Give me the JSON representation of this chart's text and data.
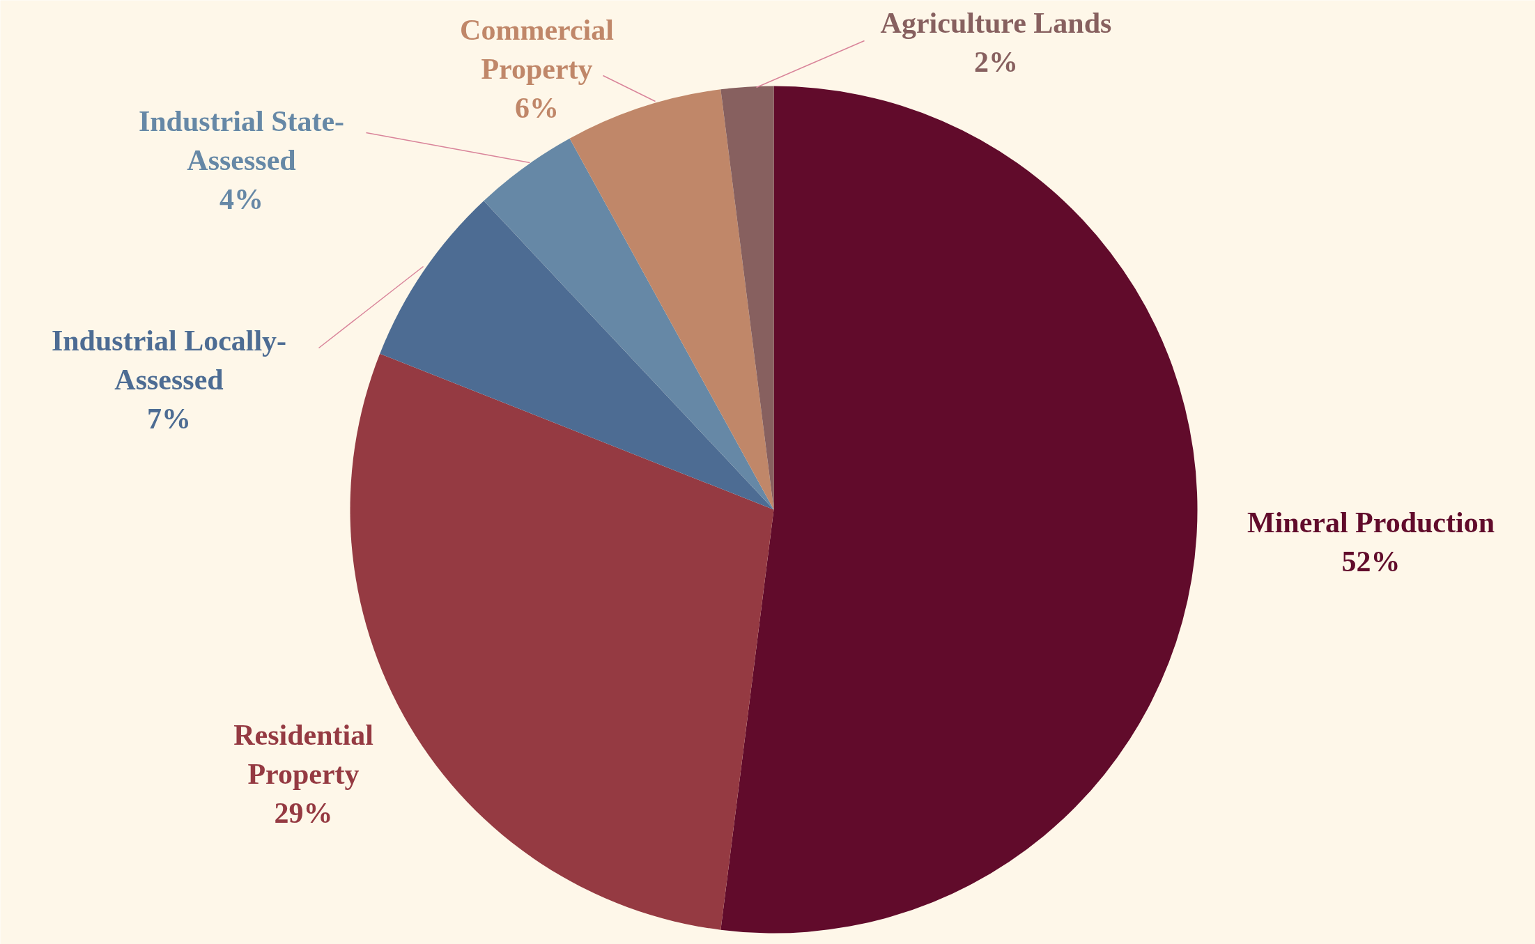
{
  "chart_data": {
    "type": "pie",
    "categories": [
      "Mineral Production",
      "Residential Property",
      "Industrial Locally-Assessed",
      "Industrial State-Assessed",
      "Commercial Property",
      "Agriculture Lands"
    ],
    "values": [
      52,
      29,
      7,
      4,
      6,
      2
    ],
    "value_labels": [
      "52%",
      "29%",
      "7%",
      "4%",
      "6%",
      "2%"
    ],
    "colors": [
      "#610b2b",
      "#953a42",
      "#4d6c93",
      "#6688a6",
      "#c08769",
      "#87605f"
    ]
  }
}
